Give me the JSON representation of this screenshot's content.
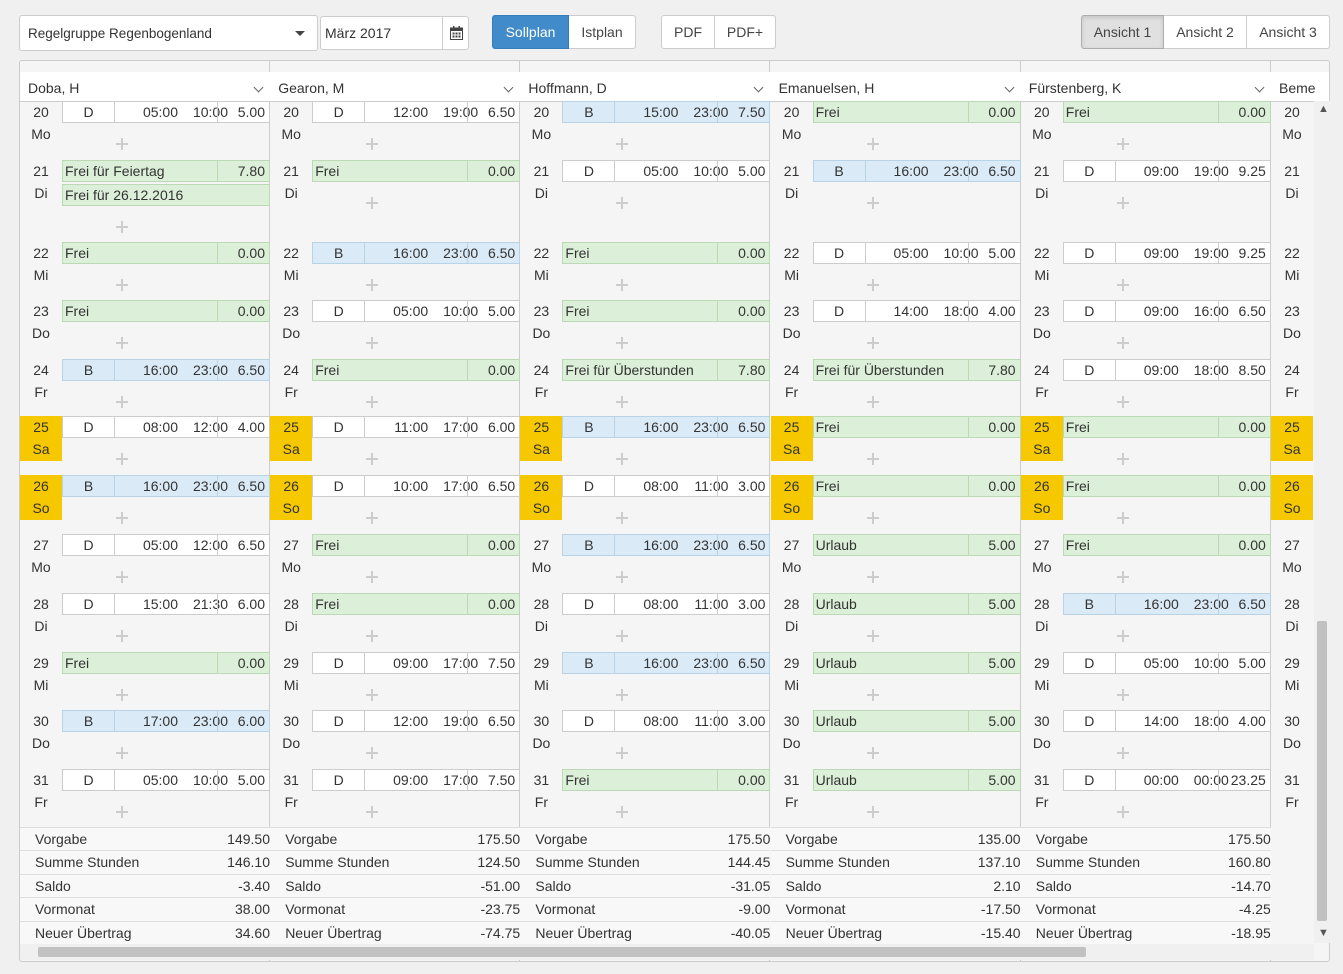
{
  "toolbar": {
    "group_select": "Regelgruppe Regenbogenland",
    "month": "März 2017",
    "plan_tabs": [
      "Sollplan",
      "Istplan"
    ],
    "export_buttons": [
      "PDF",
      "PDF+"
    ],
    "view_buttons": [
      "Ansicht 1",
      "Ansicht 2",
      "Ansicht 3"
    ]
  },
  "summary_labels": [
    "Vorgabe",
    "Summe Stunden",
    "Saldo",
    "Vormonat",
    "Neuer Übertrag"
  ],
  "days": [
    {
      "n": "20",
      "d": "Mo"
    },
    {
      "n": "21",
      "d": "Di"
    },
    {
      "n": "22",
      "d": "Mi"
    },
    {
      "n": "23",
      "d": "Do"
    },
    {
      "n": "24",
      "d": "Fr"
    },
    {
      "n": "25",
      "d": "Sa",
      "we": true
    },
    {
      "n": "26",
      "d": "So",
      "we": true
    },
    {
      "n": "27",
      "d": "Mo"
    },
    {
      "n": "28",
      "d": "Di"
    },
    {
      "n": "29",
      "d": "Mi"
    },
    {
      "n": "30",
      "d": "Do"
    },
    {
      "n": "31",
      "d": "Fr"
    }
  ],
  "employees": [
    {
      "name": "Doba, H",
      "entries": [
        [
          {
            "t": "D",
            "s": "05:00",
            "e": "10:00",
            "h": "5.00"
          }
        ],
        [
          {
            "l": "Frei für Feiertag",
            "h": "7.80"
          },
          {
            "l": "Frei für 26.12.2016",
            "h": ""
          }
        ],
        [
          {
            "l": "Frei",
            "h": "0.00"
          }
        ],
        [
          {
            "l": "Frei",
            "h": "0.00"
          }
        ],
        [
          {
            "t": "B",
            "s": "16:00",
            "e": "23:00",
            "h": "6.50"
          }
        ],
        [
          {
            "t": "D",
            "s": "08:00",
            "e": "12:00",
            "h": "4.00"
          }
        ],
        [
          {
            "t": "B",
            "s": "16:00",
            "e": "23:00",
            "h": "6.50"
          }
        ],
        [
          {
            "t": "D",
            "s": "05:00",
            "e": "12:00",
            "h": "6.50"
          }
        ],
        [
          {
            "t": "D",
            "s": "15:00",
            "e": "21:30",
            "h": "6.00"
          }
        ],
        [
          {
            "l": "Frei",
            "h": "0.00"
          }
        ],
        [
          {
            "t": "B",
            "s": "17:00",
            "e": "23:00",
            "h": "6.00"
          }
        ],
        [
          {
            "t": "D",
            "s": "05:00",
            "e": "10:00",
            "h": "5.00"
          }
        ]
      ],
      "summary": [
        "149.50",
        "146.10",
        "-3.40",
        "38.00",
        "34.60"
      ]
    },
    {
      "name": "Gearon, M",
      "entries": [
        [
          {
            "t": "D",
            "s": "12:00",
            "e": "19:00",
            "h": "6.50"
          }
        ],
        [
          {
            "l": "Frei",
            "h": "0.00"
          }
        ],
        [
          {
            "t": "B",
            "s": "16:00",
            "e": "23:00",
            "h": "6.50"
          }
        ],
        [
          {
            "t": "D",
            "s": "05:00",
            "e": "10:00",
            "h": "5.00"
          }
        ],
        [
          {
            "l": "Frei",
            "h": "0.00"
          }
        ],
        [
          {
            "t": "D",
            "s": "11:00",
            "e": "17:00",
            "h": "6.00"
          }
        ],
        [
          {
            "t": "D",
            "s": "10:00",
            "e": "17:00",
            "h": "6.50"
          }
        ],
        [
          {
            "l": "Frei",
            "h": "0.00"
          }
        ],
        [
          {
            "l": "Frei",
            "h": "0.00"
          }
        ],
        [
          {
            "t": "D",
            "s": "09:00",
            "e": "17:00",
            "h": "7.50"
          }
        ],
        [
          {
            "t": "D",
            "s": "12:00",
            "e": "19:00",
            "h": "6.50"
          }
        ],
        [
          {
            "t": "D",
            "s": "09:00",
            "e": "17:00",
            "h": "7.50"
          }
        ]
      ],
      "summary": [
        "175.50",
        "124.50",
        "-51.00",
        "-23.75",
        "-74.75"
      ]
    },
    {
      "name": "Hoffmann, D",
      "entries": [
        [
          {
            "t": "B",
            "s": "15:00",
            "e": "23:00",
            "h": "7.50"
          }
        ],
        [
          {
            "t": "D",
            "s": "05:00",
            "e": "10:00",
            "h": "5.00"
          }
        ],
        [
          {
            "l": "Frei",
            "h": "0.00"
          }
        ],
        [
          {
            "l": "Frei",
            "h": "0.00"
          }
        ],
        [
          {
            "l": "Frei für Überstunden",
            "h": "7.80"
          }
        ],
        [
          {
            "t": "B",
            "s": "16:00",
            "e": "23:00",
            "h": "6.50"
          }
        ],
        [
          {
            "t": "D",
            "s": "08:00",
            "e": "11:00",
            "h": "3.00"
          }
        ],
        [
          {
            "t": "B",
            "s": "16:00",
            "e": "23:00",
            "h": "6.50"
          }
        ],
        [
          {
            "t": "D",
            "s": "08:00",
            "e": "11:00",
            "h": "3.00"
          }
        ],
        [
          {
            "t": "B",
            "s": "16:00",
            "e": "23:00",
            "h": "6.50"
          }
        ],
        [
          {
            "t": "D",
            "s": "08:00",
            "e": "11:00",
            "h": "3.00"
          }
        ],
        [
          {
            "l": "Frei",
            "h": "0.00"
          }
        ]
      ],
      "summary": [
        "175.50",
        "144.45",
        "-31.05",
        "-9.00",
        "-40.05"
      ]
    },
    {
      "name": "Emanuelsen, H",
      "entries": [
        [
          {
            "l": "Frei",
            "h": "0.00"
          }
        ],
        [
          {
            "t": "B",
            "s": "16:00",
            "e": "23:00",
            "h": "6.50"
          }
        ],
        [
          {
            "t": "D",
            "s": "05:00",
            "e": "10:00",
            "h": "5.00"
          }
        ],
        [
          {
            "t": "D",
            "s": "14:00",
            "e": "18:00",
            "h": "4.00"
          }
        ],
        [
          {
            "l": "Frei für Überstunden",
            "h": "7.80"
          }
        ],
        [
          {
            "l": "Frei",
            "h": "0.00"
          }
        ],
        [
          {
            "l": "Frei",
            "h": "0.00"
          }
        ],
        [
          {
            "l": "Urlaub",
            "h": "5.00"
          }
        ],
        [
          {
            "l": "Urlaub",
            "h": "5.00"
          }
        ],
        [
          {
            "l": "Urlaub",
            "h": "5.00"
          }
        ],
        [
          {
            "l": "Urlaub",
            "h": "5.00"
          }
        ],
        [
          {
            "l": "Urlaub",
            "h": "5.00"
          }
        ]
      ],
      "summary": [
        "135.00",
        "137.10",
        "2.10",
        "-17.50",
        "-15.40"
      ]
    },
    {
      "name": "Fürstenberg, K",
      "entries": [
        [
          {
            "l": "Frei",
            "h": "0.00"
          }
        ],
        [
          {
            "t": "D",
            "s": "09:00",
            "e": "19:00",
            "h": "9.25"
          }
        ],
        [
          {
            "t": "D",
            "s": "09:00",
            "e": "19:00",
            "h": "9.25"
          }
        ],
        [
          {
            "t": "D",
            "s": "09:00",
            "e": "16:00",
            "h": "6.50"
          }
        ],
        [
          {
            "t": "D",
            "s": "09:00",
            "e": "18:00",
            "h": "8.50"
          }
        ],
        [
          {
            "l": "Frei",
            "h": "0.00"
          }
        ],
        [
          {
            "l": "Frei",
            "h": "0.00"
          }
        ],
        [
          {
            "l": "Frei",
            "h": "0.00"
          }
        ],
        [
          {
            "t": "B",
            "s": "16:00",
            "e": "23:00",
            "h": "6.50"
          }
        ],
        [
          {
            "t": "D",
            "s": "05:00",
            "e": "10:00",
            "h": "5.00"
          }
        ],
        [
          {
            "t": "D",
            "s": "14:00",
            "e": "18:00",
            "h": "4.00"
          }
        ],
        [
          {
            "t": "D",
            "s": "00:00",
            "e": "00:00",
            "h": "23.25"
          }
        ]
      ],
      "summary": [
        "175.50",
        "160.80",
        "-14.70",
        "-4.25",
        "-18.95"
      ]
    }
  ],
  "partial_column": {
    "name": "Beme"
  }
}
